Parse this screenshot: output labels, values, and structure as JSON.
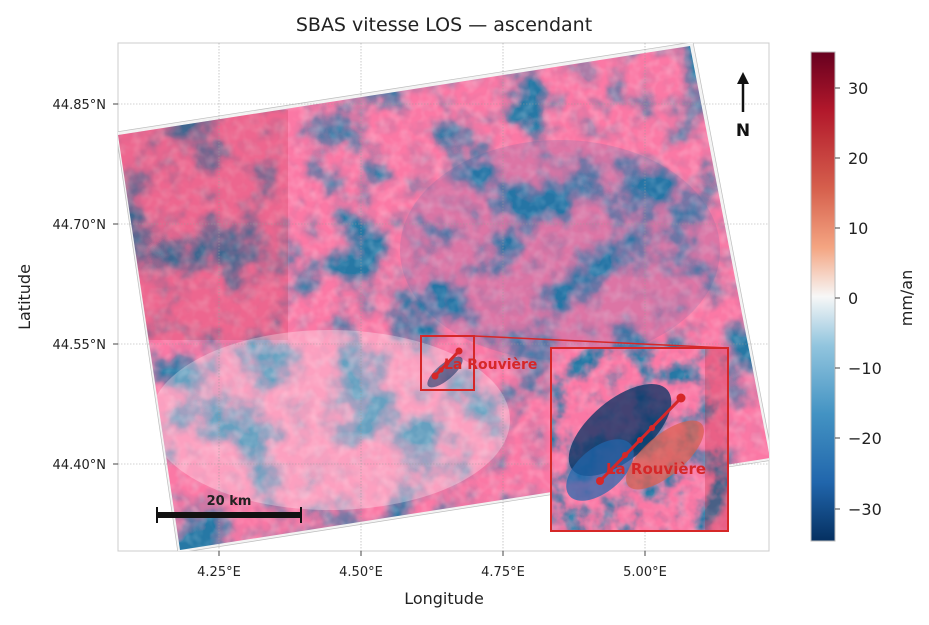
{
  "figure": {
    "title": "SBAS vitesse LOS — ascendant",
    "xlabel": "Longitude",
    "ylabel": "Latitude",
    "xticks": [
      "4.25°E",
      "4.50°E",
      "4.75°E",
      "5.00°E"
    ],
    "yticks": [
      "44.85°N",
      "44.70°N",
      "44.55°N",
      "44.40°N"
    ],
    "north_label": "N",
    "scalebar_label": "20 km"
  },
  "colorbar": {
    "label": "mm/an",
    "ticks": [
      "30",
      "20",
      "10",
      "0",
      "−10",
      "−20",
      "−30"
    ],
    "range": [
      -35,
      35
    ],
    "colormap": "RdBu_r"
  },
  "annotations": {
    "site_label": "La Rouvière",
    "inset_label": "La Rouvière",
    "accent_color": "#d62728"
  },
  "chart_data": {
    "type": "heatmap",
    "title": "SBAS vitesse LOS — ascendant",
    "xlabel": "Longitude",
    "ylabel": "Latitude",
    "xlim": [
      4.09,
      5.22
    ],
    "ylim": [
      44.29,
      44.92
    ],
    "x_ticks": [
      4.25,
      4.5,
      4.75,
      5.0
    ],
    "y_ticks": [
      44.85,
      44.7,
      44.55,
      44.4
    ],
    "value_label": "mm/an",
    "value_range": [
      -35,
      35
    ],
    "grid": true,
    "site": {
      "name": "La Rouvière",
      "lon": [
        4.64,
        4.69
      ],
      "lat": [
        44.52,
        44.54
      ]
    }
  }
}
